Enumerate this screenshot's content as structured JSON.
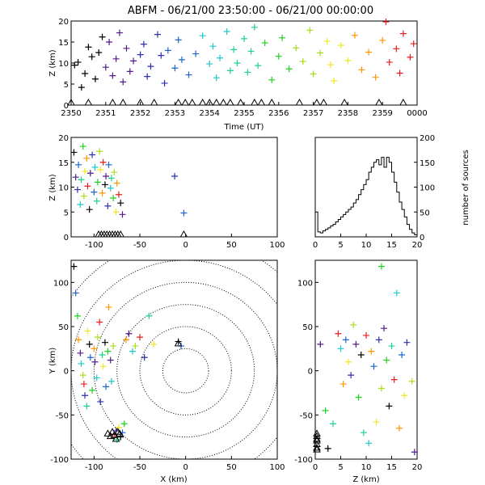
{
  "title": "ABFM - 06/21/00 23:50:00 - 06/21/00 00:00:00",
  "colors": {
    "palette": [
      "#000000",
      "#551a8b",
      "#2f2fb0",
      "#1e64d2",
      "#1ec8c8",
      "#1ed28c",
      "#1ed21e",
      "#aadc1e",
      "#f0e628",
      "#ff9600",
      "#e61e1e"
    ],
    "axes": "#000000",
    "background": "#ffffff"
  },
  "chart_data": [
    {
      "id": "time-height",
      "type": "scatter",
      "xlabel": "Time (UT)",
      "ylabel": "Z (km)",
      "xlim": [
        0,
        10
      ],
      "ylim": [
        0,
        20
      ],
      "xtick_labels": [
        "2350",
        "2351",
        "2352",
        "2353",
        "2354",
        "2355",
        "2356",
        "2357",
        "2358",
        "2359",
        "0000"
      ],
      "yticks": [
        0,
        5,
        10,
        15,
        20
      ],
      "points": [
        [
          0.1,
          9.5
        ],
        [
          0.2,
          10.2
        ],
        [
          0.3,
          4.2
        ],
        [
          0.4,
          7.5
        ],
        [
          0.5,
          13.8
        ],
        [
          0.6,
          11.5
        ],
        [
          0.7,
          6.2
        ],
        [
          0.8,
          12.5
        ],
        [
          0.9,
          16.2
        ],
        [
          1.0,
          9.0
        ],
        [
          1.1,
          15.0
        ],
        [
          1.2,
          7.0
        ],
        [
          1.3,
          11.0
        ],
        [
          1.4,
          17.2
        ],
        [
          1.5,
          5.5
        ],
        [
          1.6,
          13.5
        ],
        [
          1.7,
          8.0
        ],
        [
          1.8,
          10.5
        ],
        [
          2.0,
          12.0
        ],
        [
          2.1,
          14.5
        ],
        [
          2.2,
          6.8
        ],
        [
          2.3,
          9.2
        ],
        [
          2.5,
          16.8
        ],
        [
          2.6,
          11.8
        ],
        [
          2.7,
          5.2
        ],
        [
          2.8,
          13.0
        ],
        [
          3.0,
          8.8
        ],
        [
          3.1,
          15.5
        ],
        [
          3.2,
          10.8
        ],
        [
          3.4,
          7.2
        ],
        [
          3.6,
          12.2
        ],
        [
          3.8,
          16.5
        ],
        [
          4.0,
          9.8
        ],
        [
          4.1,
          14.0
        ],
        [
          4.2,
          6.5
        ],
        [
          4.3,
          11.2
        ],
        [
          4.5,
          17.5
        ],
        [
          4.6,
          8.2
        ],
        [
          4.7,
          13.2
        ],
        [
          4.8,
          10.0
        ],
        [
          5.0,
          15.8
        ],
        [
          5.1,
          7.8
        ],
        [
          5.2,
          12.8
        ],
        [
          5.3,
          18.5
        ],
        [
          5.4,
          9.4
        ],
        [
          5.6,
          14.8
        ],
        [
          5.8,
          6.0
        ],
        [
          6.0,
          11.6
        ],
        [
          6.1,
          16.0
        ],
        [
          6.3,
          8.6
        ],
        [
          6.5,
          13.6
        ],
        [
          6.7,
          10.4
        ],
        [
          6.9,
          17.8
        ],
        [
          7.0,
          7.4
        ],
        [
          7.2,
          12.4
        ],
        [
          7.4,
          15.2
        ],
        [
          7.5,
          9.6
        ],
        [
          7.6,
          5.8
        ],
        [
          7.8,
          14.2
        ],
        [
          8.0,
          10.6
        ],
        [
          8.2,
          16.6
        ],
        [
          8.4,
          8.4
        ],
        [
          8.6,
          12.6
        ],
        [
          8.8,
          6.6
        ],
        [
          9.0,
          15.4
        ],
        [
          9.1,
          19.8
        ],
        [
          9.2,
          10.2
        ],
        [
          9.4,
          13.4
        ],
        [
          9.5,
          7.6
        ],
        [
          9.6,
          17.0
        ],
        [
          9.8,
          11.4
        ],
        [
          9.9,
          14.6
        ]
      ],
      "ground_markers": [
        0.0,
        0.5,
        1.2,
        1.5,
        2.0,
        2.4,
        3.1,
        3.3,
        3.5,
        3.8,
        4.0,
        4.2,
        4.4,
        4.6,
        4.9,
        5.3,
        5.5,
        5.8,
        6.6,
        7.1,
        7.3,
        7.9,
        8.9,
        9.6
      ]
    },
    {
      "id": "x-height",
      "type": "scatter",
      "xlabel": "",
      "ylabel": "Z (km)",
      "xlim": [
        -125,
        100
      ],
      "ylim": [
        0,
        20
      ],
      "xticks": [
        -100,
        -50,
        0,
        50,
        100
      ],
      "yticks": [
        0,
        5,
        10,
        15,
        20
      ],
      "points": [
        [
          -122,
          17
        ],
        [
          -120,
          12
        ],
        [
          -118,
          9.5
        ],
        [
          -117,
          14.5
        ],
        [
          -115,
          6.5
        ],
        [
          -114,
          11.5
        ],
        [
          -112,
          18.2
        ],
        [
          -111,
          8.2
        ],
        [
          -110,
          13.2
        ],
        [
          -108,
          15.8
        ],
        [
          -107,
          10.2
        ],
        [
          -105,
          5.5
        ],
        [
          -104,
          12.8
        ],
        [
          -102,
          16.5
        ],
        [
          -100,
          9.0
        ],
        [
          -99,
          14.0
        ],
        [
          -97,
          7.2
        ],
        [
          -96,
          11.0
        ],
        [
          -94,
          17.2
        ],
        [
          -93,
          13.5
        ],
        [
          -91,
          8.8
        ],
        [
          -90,
          15.0
        ],
        [
          -88,
          10.5
        ],
        [
          -87,
          12.2
        ],
        [
          -85,
          6.2
        ],
        [
          -84,
          14.5
        ],
        [
          -82,
          9.8
        ],
        [
          -81,
          11.8
        ],
        [
          -79,
          7.8
        ],
        [
          -78,
          13.0
        ],
        [
          -76,
          5.0
        ],
        [
          -75,
          10.8
        ],
        [
          -73,
          8.5
        ],
        [
          -71,
          6.8
        ],
        [
          -69,
          4.5
        ],
        [
          -12,
          12.2
        ],
        [
          -2,
          4.8
        ]
      ],
      "ground_markers": [
        -95,
        -92,
        -89,
        -86,
        -83,
        -80,
        -77,
        -74,
        -71,
        -2
      ]
    },
    {
      "id": "height-histogram",
      "type": "bar",
      "xlabel": "",
      "ylabel": "number of sources",
      "xlim": [
        0,
        20
      ],
      "ylim": [
        0,
        200
      ],
      "xticks": [
        0,
        5,
        10,
        15,
        20
      ],
      "yticks": [
        0,
        50,
        100,
        150,
        200
      ],
      "bin_width": 0.5,
      "values": [
        50,
        10,
        8,
        12,
        15,
        18,
        22,
        25,
        30,
        35,
        40,
        45,
        50,
        55,
        60,
        68,
        75,
        85,
        95,
        105,
        115,
        130,
        140,
        150,
        155,
        145,
        160,
        140,
        160,
        150,
        130,
        110,
        90,
        70,
        55,
        40,
        25,
        15,
        8,
        4
      ]
    },
    {
      "id": "plan-view",
      "type": "scatter",
      "xlabel": "X (km)",
      "ylabel": "Y (km)",
      "xlim": [
        -125,
        100
      ],
      "ylim": [
        -100,
        125
      ],
      "xticks": [
        -100,
        -50,
        0,
        50,
        100
      ],
      "yticks": [
        -100,
        -50,
        0,
        50,
        100
      ],
      "range_rings_km": [
        25,
        50,
        75,
        100,
        125,
        150
      ],
      "points": [
        [
          -122,
          118
        ],
        [
          -120,
          88
        ],
        [
          -118,
          62
        ],
        [
          -117,
          35
        ],
        [
          -115,
          20
        ],
        [
          -114,
          8
        ],
        [
          -112,
          -5
        ],
        [
          -111,
          -15
        ],
        [
          -110,
          -28
        ],
        [
          -108,
          -40
        ],
        [
          -107,
          45
        ],
        [
          -105,
          30
        ],
        [
          -104,
          15
        ],
        [
          -102,
          -22
        ],
        [
          -100,
          25
        ],
        [
          -99,
          10
        ],
        [
          -97,
          -8
        ],
        [
          -96,
          38
        ],
        [
          -94,
          55
        ],
        [
          -93,
          -35
        ],
        [
          -91,
          18
        ],
        [
          -90,
          5
        ],
        [
          -88,
          32
        ],
        [
          -87,
          -18
        ],
        [
          -85,
          22
        ],
        [
          -84,
          72
        ],
        [
          -82,
          12
        ],
        [
          -81,
          -12
        ],
        [
          -79,
          28
        ],
        [
          -78,
          -72
        ],
        [
          -76,
          -68
        ],
        [
          -75,
          -78
        ],
        [
          -73,
          -64
        ],
        [
          -71,
          -75
        ],
        [
          -69,
          -70
        ],
        [
          -67,
          -60
        ],
        [
          -65,
          35
        ],
        [
          -62,
          42
        ],
        [
          -58,
          22
        ],
        [
          -55,
          28
        ],
        [
          -50,
          38
        ],
        [
          -45,
          15
        ],
        [
          -40,
          62
        ],
        [
          -35,
          30
        ],
        [
          -8,
          33
        ],
        [
          -5,
          28
        ]
      ],
      "ground_markers": [
        [
          -85,
          -72
        ],
        [
          -82,
          -75
        ],
        [
          -80,
          -70
        ],
        [
          -78,
          -74
        ],
        [
          -76,
          -78
        ],
        [
          -74,
          -70
        ],
        [
          -72,
          -72
        ],
        [
          -8,
          30
        ]
      ]
    },
    {
      "id": "height-y",
      "type": "scatter",
      "xlabel": "Z (km)",
      "ylabel": "",
      "xlim": [
        0,
        20
      ],
      "ylim": [
        -100,
        125
      ],
      "xticks": [
        0,
        5,
        10,
        15,
        20
      ],
      "yticks": [
        -100,
        -50,
        0,
        50,
        100
      ],
      "points": [
        [
          1.0,
          30
        ],
        [
          2.0,
          -45
        ],
        [
          2.5,
          -88
        ],
        [
          3.5,
          -60
        ],
        [
          4.5,
          42
        ],
        [
          5.0,
          25
        ],
        [
          5.5,
          -15
        ],
        [
          6.0,
          35
        ],
        [
          6.5,
          10
        ],
        [
          7.0,
          -5
        ],
        [
          7.5,
          52
        ],
        [
          8.0,
          30
        ],
        [
          8.5,
          -30
        ],
        [
          9.0,
          18
        ],
        [
          9.5,
          -70
        ],
        [
          10.0,
          40
        ],
        [
          10.5,
          -82
        ],
        [
          11.0,
          22
        ],
        [
          11.5,
          5
        ],
        [
          12.0,
          -58
        ],
        [
          12.5,
          35
        ],
        [
          13.0,
          -20
        ],
        [
          13.5,
          48
        ],
        [
          14.0,
          12
        ],
        [
          14.5,
          -40
        ],
        [
          15.0,
          28
        ],
        [
          15.5,
          -10
        ],
        [
          16.0,
          88
        ],
        [
          16.5,
          -65
        ],
        [
          17.0,
          18
        ],
        [
          17.5,
          -28
        ],
        [
          18.0,
          32
        ],
        [
          19.0,
          -12
        ],
        [
          19.5,
          -92
        ],
        [
          13.0,
          118
        ]
      ],
      "ground_markers": [
        [
          0,
          -72
        ],
        [
          0,
          -75
        ],
        [
          0,
          -78
        ],
        [
          0,
          -80
        ],
        [
          0,
          -84
        ],
        [
          0,
          -88
        ],
        [
          0,
          -90
        ]
      ]
    }
  ]
}
